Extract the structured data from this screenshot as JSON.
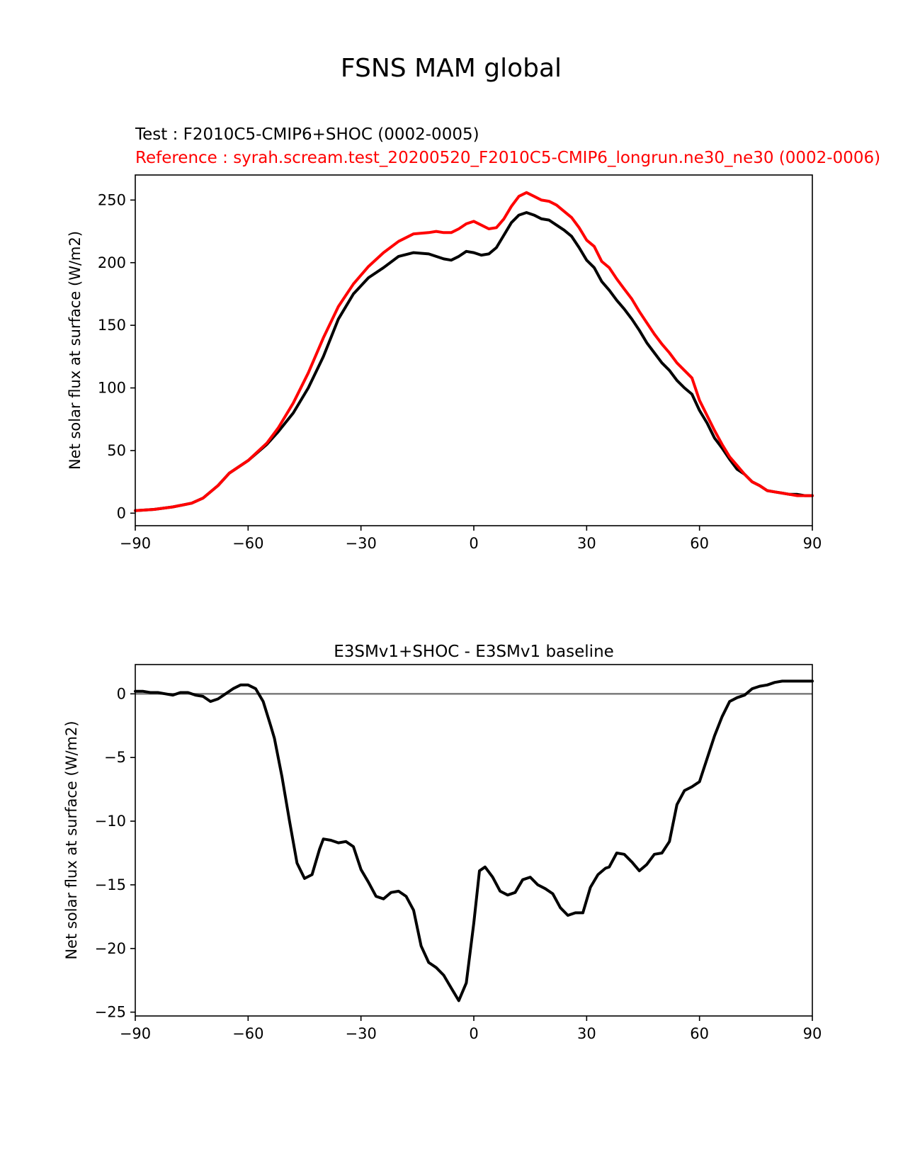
{
  "suptitle": "FSNS MAM global",
  "chart_data": [
    {
      "type": "line",
      "title_test": "Test : F2010C5-CMIP6+SHOC (0002-0005)",
      "title_ref": "Reference : syrah.scream.test_20200520_F2010C5-CMIP6_longrun.ne30_ne30 (0002-0006)",
      "xlabel": "",
      "ylabel": "Net solar flux at surface (W/m2)",
      "xlim": [
        -90,
        90
      ],
      "ylim": [
        -10,
        270
      ],
      "xticks": [
        -90,
        -60,
        -30,
        0,
        30,
        60,
        90
      ],
      "xtick_labels": [
        "−90",
        "−60",
        "−30",
        "0",
        "30",
        "60",
        "90"
      ],
      "yticks": [
        0,
        50,
        100,
        150,
        200,
        250
      ],
      "ytick_labels": [
        "0",
        "50",
        "100",
        "150",
        "200",
        "250"
      ],
      "series": [
        {
          "name": "Test",
          "color": "#000000",
          "x": [
            -90,
            -85,
            -80,
            -75,
            -72,
            -68,
            -65,
            -60,
            -55,
            -52,
            -48,
            -44,
            -40,
            -36,
            -32,
            -28,
            -24,
            -20,
            -16,
            -12,
            -10,
            -8,
            -6,
            -4,
            -2,
            0,
            2,
            4,
            6,
            8,
            10,
            12,
            14,
            16,
            18,
            20,
            22,
            24,
            26,
            28,
            30,
            32,
            34,
            36,
            38,
            40,
            42,
            44,
            46,
            48,
            50,
            52,
            54,
            56,
            58,
            60,
            62,
            64,
            66,
            68,
            70,
            72,
            74,
            76,
            78,
            80,
            82,
            84,
            86,
            88,
            90
          ],
          "y": [
            2,
            3,
            5,
            8,
            12,
            22,
            32,
            42,
            55,
            65,
            80,
            100,
            125,
            155,
            175,
            188,
            196,
            205,
            208,
            207,
            205,
            203,
            202,
            205,
            209,
            208,
            206,
            207,
            212,
            222,
            232,
            238,
            240,
            238,
            235,
            234,
            230,
            226,
            221,
            212,
            202,
            196,
            185,
            178,
            170,
            163,
            155,
            146,
            136,
            128,
            120,
            114,
            106,
            100,
            95,
            82,
            72,
            60,
            52,
            43,
            35,
            31,
            25,
            22,
            18,
            17,
            16,
            15,
            15,
            14,
            14
          ]
        },
        {
          "name": "Reference",
          "color": "#ff0000",
          "x": [
            -90,
            -85,
            -80,
            -75,
            -72,
            -68,
            -65,
            -60,
            -55,
            -52,
            -48,
            -44,
            -40,
            -36,
            -32,
            -28,
            -24,
            -20,
            -16,
            -12,
            -10,
            -8,
            -6,
            -4,
            -2,
            0,
            2,
            4,
            6,
            8,
            10,
            12,
            14,
            16,
            18,
            20,
            22,
            24,
            26,
            28,
            30,
            32,
            34,
            36,
            38,
            40,
            42,
            44,
            46,
            48,
            50,
            52,
            54,
            56,
            58,
            60,
            62,
            64,
            66,
            68,
            70,
            72,
            74,
            76,
            78,
            80,
            82,
            84,
            86,
            88,
            90
          ],
          "y": [
            2,
            3,
            5,
            8,
            12,
            22,
            32,
            42,
            56,
            68,
            88,
            112,
            140,
            165,
            183,
            197,
            208,
            217,
            223,
            224,
            225,
            224,
            224,
            227,
            231,
            233,
            230,
            227,
            228,
            235,
            245,
            253,
            256,
            253,
            250,
            249,
            246,
            241,
            236,
            228,
            218,
            213,
            201,
            196,
            187,
            179,
            171,
            161,
            152,
            143,
            135,
            128,
            120,
            114,
            108,
            90,
            78,
            66,
            55,
            45,
            38,
            31,
            25,
            22,
            18,
            17,
            16,
            15,
            14,
            14,
            14
          ]
        }
      ]
    },
    {
      "type": "line",
      "title": "E3SMv1+SHOC - E3SMv1 baseline",
      "xlabel": "",
      "ylabel": "Net solar flux at surface (W/m2)",
      "xlim": [
        -90,
        90
      ],
      "ylim": [
        -25.3,
        2.3
      ],
      "xticks": [
        -90,
        -60,
        -30,
        0,
        30,
        60,
        90
      ],
      "xtick_labels": [
        "−90",
        "−60",
        "−30",
        "0",
        "30",
        "60",
        "90"
      ],
      "yticks": [
        0,
        -5,
        -10,
        -15,
        -20,
        -25
      ],
      "ytick_labels": [
        "0",
        "−5",
        "−10",
        "−15",
        "−20",
        "−25"
      ],
      "zero_line_color": "#808080",
      "series": [
        {
          "name": "Difference",
          "color": "#000000",
          "x": [
            -90,
            -88,
            -86,
            -84,
            -82,
            -80,
            -78,
            -76,
            -74,
            -72,
            -70,
            -68,
            -66,
            -64,
            -62,
            -60,
            -58,
            -56,
            -54,
            -53,
            -51,
            -49,
            -47,
            -45,
            -43,
            -41,
            -40,
            -38,
            -36,
            -34,
            -32,
            -30,
            -28,
            -26,
            -24,
            -22,
            -20,
            -18,
            -16,
            -14,
            -12,
            -10,
            -8,
            -6,
            -4,
            -2,
            0,
            1.5,
            3,
            5,
            7,
            9,
            11,
            13,
            15,
            17,
            19,
            21,
            23,
            25,
            27,
            29,
            31,
            33,
            35,
            36,
            38,
            40,
            42,
            44,
            46,
            48,
            50,
            52,
            54,
            56,
            58,
            60,
            62,
            64,
            66,
            68,
            70,
            72,
            74,
            76,
            78,
            80,
            82,
            84,
            86,
            88,
            90
          ],
          "y": [
            0.2,
            0.2,
            0.1,
            0.1,
            0.0,
            -0.1,
            0.1,
            0.1,
            -0.1,
            -0.2,
            -0.6,
            -0.4,
            0.0,
            0.4,
            0.7,
            0.7,
            0.4,
            -0.6,
            -2.5,
            -3.5,
            -6.5,
            -10.0,
            -13.3,
            -14.5,
            -14.2,
            -12.2,
            -11.4,
            -11.5,
            -11.7,
            -11.6,
            -12.0,
            -13.8,
            -14.8,
            -15.9,
            -16.1,
            -15.6,
            -15.5,
            -15.9,
            -17.0,
            -19.8,
            -21.1,
            -21.5,
            -22.1,
            -23.1,
            -24.1,
            -22.7,
            -18.0,
            -13.9,
            -13.6,
            -14.4,
            -15.5,
            -15.8,
            -15.6,
            -14.6,
            -14.4,
            -15.0,
            -15.3,
            -15.7,
            -16.8,
            -17.4,
            -17.2,
            -17.2,
            -15.2,
            -14.2,
            -13.7,
            -13.6,
            -12.5,
            -12.6,
            -13.2,
            -13.9,
            -13.4,
            -12.6,
            -12.5,
            -11.6,
            -8.7,
            -7.6,
            -7.3,
            -6.9,
            -5.1,
            -3.3,
            -1.8,
            -0.6,
            -0.3,
            -0.1,
            0.4,
            0.6,
            0.7,
            0.9,
            1.0,
            1.0,
            1.0,
            1.0,
            1.0
          ]
        }
      ]
    }
  ]
}
